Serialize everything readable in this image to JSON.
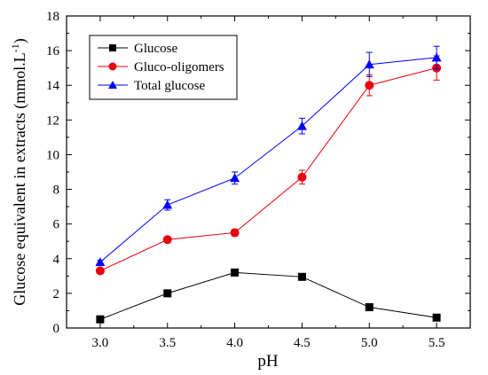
{
  "chart_data": {
    "type": "line",
    "title": "",
    "xlabel": "pH",
    "ylabel": "Glucose equivalent in extracts (mmol.L",
    "ylabel_sup": "-1",
    "ylabel_close": ")",
    "xlim": [
      2.75,
      5.75
    ],
    "ylim": [
      0,
      18
    ],
    "x_ticks": [
      "3.0",
      "3.5",
      "4.0",
      "4.5",
      "5.0",
      "5.5"
    ],
    "y_ticks": [
      "0",
      "2",
      "4",
      "6",
      "8",
      "10",
      "12",
      "14",
      "16",
      "18"
    ],
    "grid": false,
    "legend_position": "top-left",
    "x": [
      3.0,
      3.5,
      4.0,
      4.5,
      5.0,
      5.5
    ],
    "series": [
      {
        "name": "Glucose",
        "color": "#000000",
        "marker": "square",
        "values": [
          0.5,
          2.0,
          3.2,
          2.95,
          1.2,
          0.6
        ],
        "errors": [
          0,
          0,
          0,
          0,
          0,
          0
        ]
      },
      {
        "name": "Gluco-oligomers",
        "color": "#e8000b",
        "marker": "circle",
        "values": [
          3.3,
          5.1,
          5.5,
          8.7,
          14.0,
          15.0
        ],
        "errors": [
          0.1,
          0.15,
          0.2,
          0.4,
          0.6,
          0.7
        ]
      },
      {
        "name": "Total glucose",
        "color": "#0000ff",
        "marker": "triangle",
        "values": [
          3.8,
          7.1,
          8.65,
          11.65,
          15.2,
          15.6
        ],
        "errors": [
          0.1,
          0.3,
          0.35,
          0.45,
          0.7,
          0.65
        ]
      }
    ]
  }
}
